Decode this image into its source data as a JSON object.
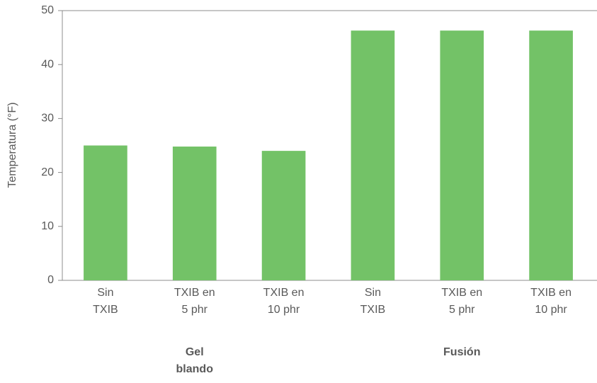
{
  "chart_data": {
    "type": "bar",
    "ylabel": "Temperatura (°F)",
    "categories": [
      [
        "Sin",
        "TXIB"
      ],
      [
        "TXIB en",
        "5 phr"
      ],
      [
        "TXIB en",
        "10 phr"
      ],
      [
        "Sin",
        "TXIB"
      ],
      [
        "TXIB en",
        "5 phr"
      ],
      [
        "TXIB en",
        "10 phr"
      ]
    ],
    "values": [
      25,
      24.8,
      24,
      46.3,
      46.3,
      46.3
    ],
    "color": "#73c267",
    "groups": [
      {
        "label": [
          "Gel",
          "blando"
        ],
        "size": 3
      },
      {
        "label": [
          "Fusión"
        ],
        "size": 3
      }
    ],
    "ylim": [
      0,
      50
    ],
    "yticks": [
      0,
      10,
      20,
      30,
      40,
      50
    ],
    "grid": false
  }
}
